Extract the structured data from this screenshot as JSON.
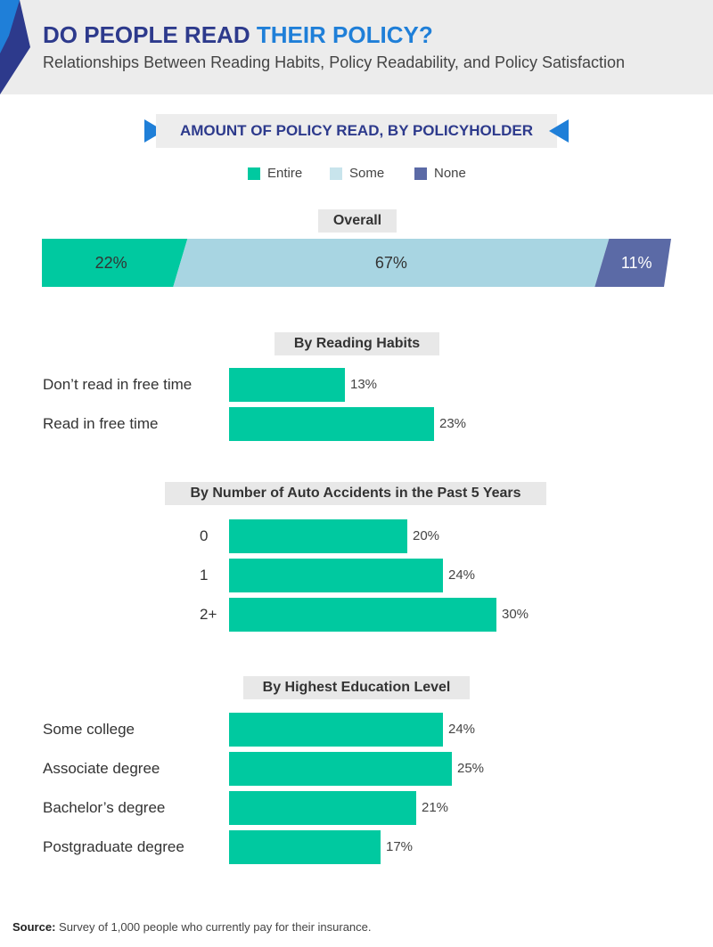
{
  "header": {
    "title_part1": "DO PEOPLE READ ",
    "title_part2": "THEIR POLICY?",
    "subtitle": "Relationships Between Reading Habits, Policy Readability, and Policy Satisfaction"
  },
  "banner": "AMOUNT OF POLICY READ, BY POLICYHOLDER",
  "legend": [
    {
      "label": "Entire",
      "color": "#00c9a0"
    },
    {
      "label": "Some",
      "color": "#c8e4ec"
    },
    {
      "label": "None",
      "color": "#5b6aa6"
    }
  ],
  "source": {
    "label": "Source:",
    "text": " Survey of 1,000 people who currently pay for their insurance."
  },
  "chart_data": [
    {
      "type": "bar",
      "orientation": "horizontal-stacked",
      "title": "Overall",
      "series": [
        {
          "name": "Entire",
          "value": 22,
          "label": "22%",
          "color": "#00c9a0"
        },
        {
          "name": "Some",
          "value": 67,
          "label": "67%",
          "color": "#a8d5e2"
        },
        {
          "name": "None",
          "value": 11,
          "label": "11%",
          "color": "#5b6aa6"
        }
      ]
    },
    {
      "type": "bar",
      "orientation": "horizontal",
      "title": "By Reading Habits",
      "categories": [
        "Don’t read in free time",
        "Read in free time"
      ],
      "values": [
        13,
        23
      ],
      "labels": [
        "13%",
        "23%"
      ]
    },
    {
      "type": "bar",
      "orientation": "horizontal",
      "title": "By Number of Auto Accidents in the Past 5 Years",
      "categories": [
        "0",
        "1",
        "2+"
      ],
      "values": [
        20,
        24,
        30
      ],
      "labels": [
        "20%",
        "24%",
        "30%"
      ]
    },
    {
      "type": "bar",
      "orientation": "horizontal",
      "title": "By Highest Education Level",
      "categories": [
        "Some college",
        "Associate degree",
        "Bachelor’s degree",
        "Postgraduate degree"
      ],
      "values": [
        24,
        25,
        21,
        17
      ],
      "labels": [
        "24%",
        "25%",
        "21%",
        "17%"
      ]
    }
  ]
}
